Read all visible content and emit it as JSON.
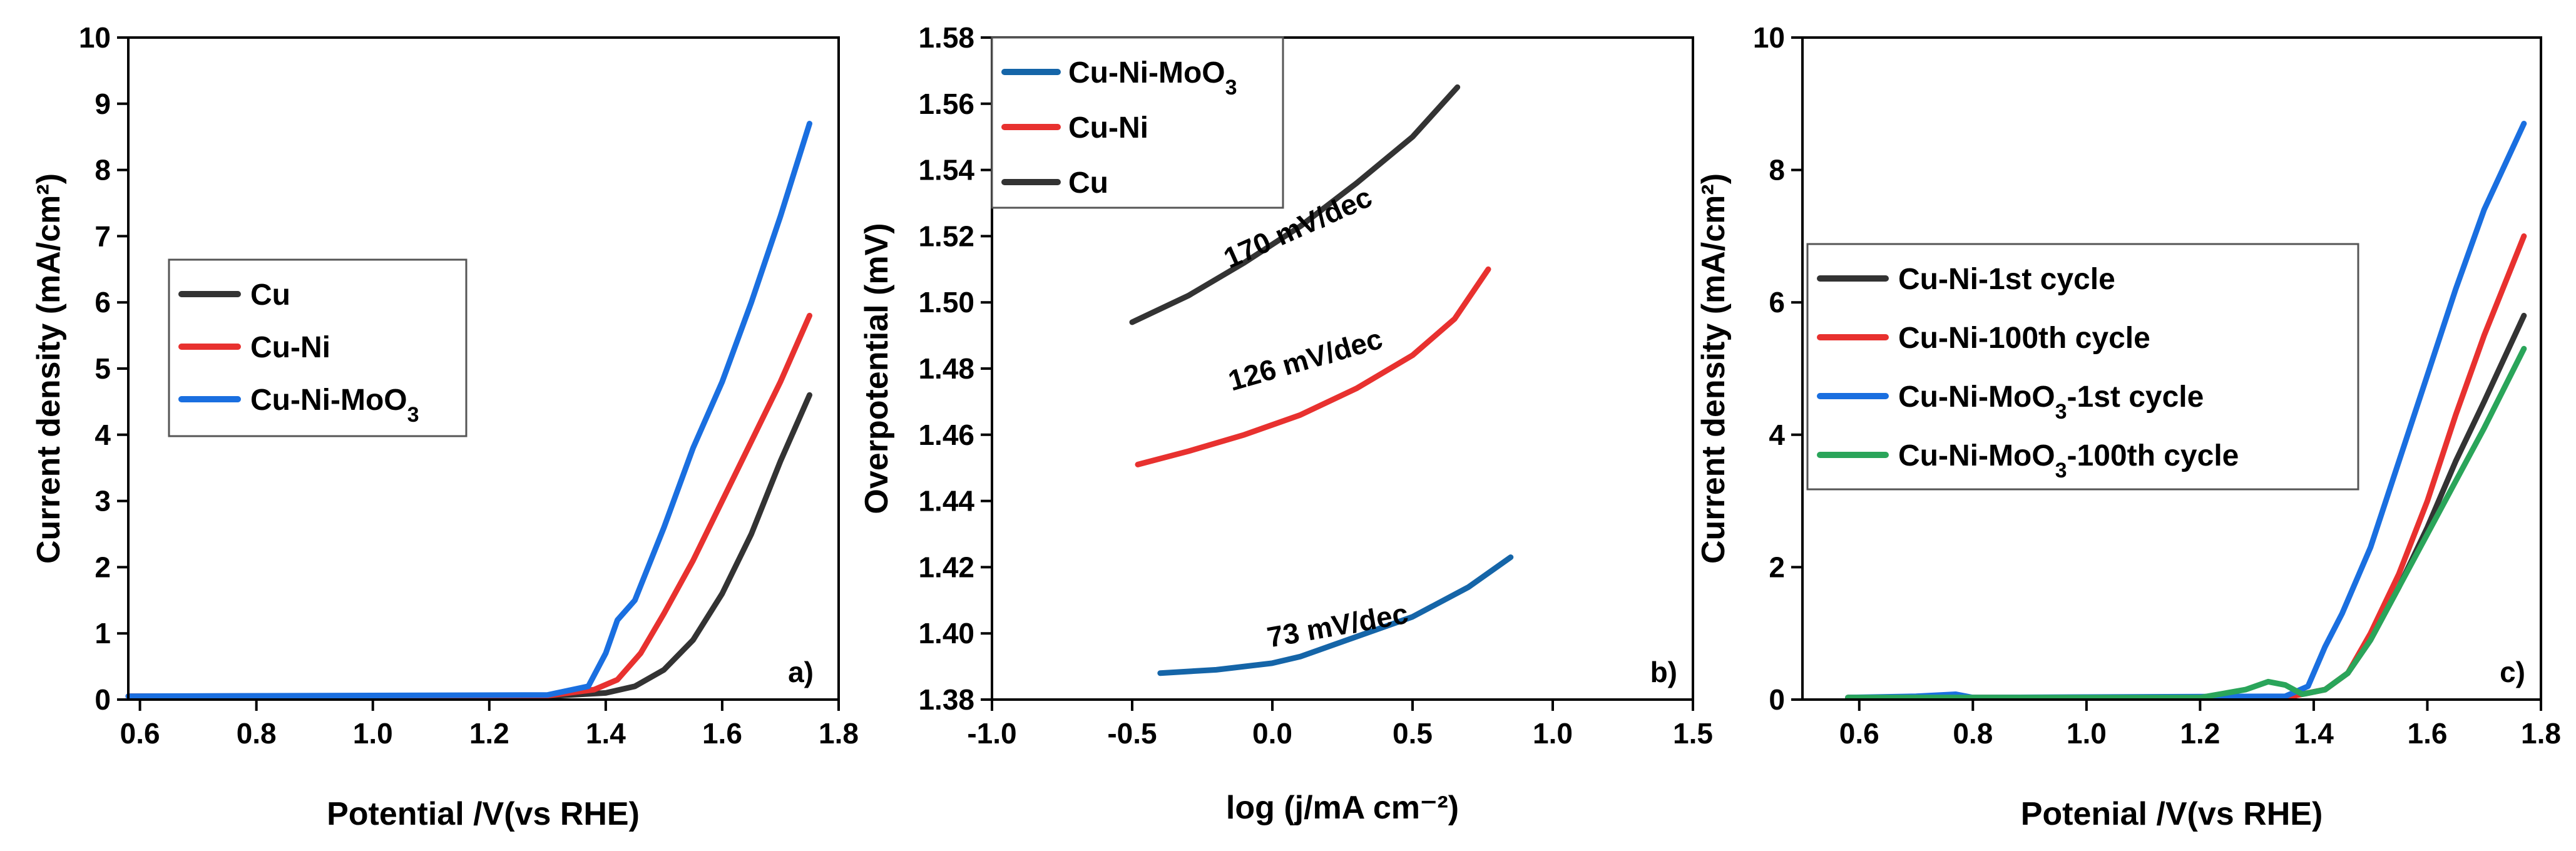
{
  "colors": {
    "black": "#333333",
    "red": "#e8312f",
    "blue": "#1a6fe0",
    "steel": "#1565a8",
    "green": "#2aa55a"
  },
  "chart_data": [
    {
      "id": "a",
      "type": "line",
      "panel_label": "a)",
      "xlabel": "Potential /V(vs RHE)",
      "ylabel": "Current density (mA/cm²)",
      "xlim": [
        0.58,
        1.8
      ],
      "ylim": [
        0,
        10
      ],
      "xticks": [
        "0.6",
        "0.8",
        "1.0",
        "1.2",
        "1.4",
        "1.6",
        "1.8"
      ],
      "yticks": [
        "0",
        "1",
        "2",
        "3",
        "4",
        "5",
        "6",
        "7",
        "8",
        "9",
        "10"
      ],
      "legend_position": "center-left",
      "series": [
        {
          "name": "Cu",
          "color_key": "black",
          "x": [
            0.58,
            1.3,
            1.4,
            1.45,
            1.5,
            1.55,
            1.6,
            1.65,
            1.7,
            1.75
          ],
          "y": [
            0.05,
            0.05,
            0.1,
            0.2,
            0.45,
            0.9,
            1.6,
            2.5,
            3.6,
            4.6
          ]
        },
        {
          "name": "Cu-Ni",
          "color_key": "red",
          "x": [
            0.58,
            1.3,
            1.38,
            1.42,
            1.46,
            1.5,
            1.55,
            1.6,
            1.65,
            1.7,
            1.75
          ],
          "y": [
            0.05,
            0.06,
            0.15,
            0.3,
            0.7,
            1.3,
            2.1,
            3.0,
            3.9,
            4.8,
            5.8
          ]
        },
        {
          "name": "Cu-Ni-MoO3",
          "color_key": "blue",
          "x": [
            0.58,
            1.3,
            1.37,
            1.4,
            1.42,
            1.45,
            1.5,
            1.55,
            1.6,
            1.65,
            1.7,
            1.75
          ],
          "y": [
            0.05,
            0.07,
            0.2,
            0.7,
            1.2,
            1.5,
            2.6,
            3.8,
            4.8,
            6.0,
            7.3,
            8.7
          ]
        }
      ]
    },
    {
      "id": "b",
      "type": "line",
      "panel_label": "b)",
      "xlabel": "log (j/mA cm⁻²)",
      "ylabel": "Overpotential (mV)",
      "xlim": [
        -1.0,
        1.5
      ],
      "ylim": [
        1.38,
        1.58
      ],
      "xticks": [
        "-1.0",
        "-0.5",
        "0.0",
        "0.5",
        "1.0",
        "1.5"
      ],
      "yticks": [
        "1.38",
        "1.40",
        "1.42",
        "1.44",
        "1.46",
        "1.48",
        "1.50",
        "1.52",
        "1.54",
        "1.56",
        "1.58"
      ],
      "legend_position": "top-left",
      "series": [
        {
          "name": "Cu-Ni-MoO3",
          "color_key": "steel",
          "slope_label": "73 mV/dec",
          "x": [
            -0.4,
            -0.2,
            0.0,
            0.1,
            0.3,
            0.5,
            0.7,
            0.85
          ],
          "y": [
            1.388,
            1.389,
            1.391,
            1.393,
            1.399,
            1.405,
            1.414,
            1.423
          ]
        },
        {
          "name": "Cu-Ni",
          "color_key": "red",
          "slope_label": "126 mV/dec",
          "x": [
            -0.48,
            -0.3,
            -0.1,
            0.1,
            0.3,
            0.5,
            0.65,
            0.77
          ],
          "y": [
            1.451,
            1.455,
            1.46,
            1.466,
            1.474,
            1.484,
            1.495,
            1.51
          ]
        },
        {
          "name": "Cu",
          "color_key": "black",
          "slope_label": "170 mV/dec",
          "x": [
            -0.5,
            -0.3,
            -0.1,
            0.1,
            0.3,
            0.5,
            0.66
          ],
          "y": [
            1.494,
            1.502,
            1.512,
            1.523,
            1.536,
            1.55,
            1.565
          ]
        }
      ]
    },
    {
      "id": "c",
      "type": "line",
      "panel_label": "c)",
      "xlabel": "Potenial /V(vs RHE)",
      "ylabel": "Current density (mA/cm²)",
      "xlim": [
        0.5,
        1.8
      ],
      "ylim": [
        0,
        10
      ],
      "xticks": [
        "0.6",
        "0.8",
        "1.0",
        "1.2",
        "1.4",
        "1.6",
        "1.8"
      ],
      "yticks": [
        "0",
        "2",
        "4",
        "6",
        "8",
        "10"
      ],
      "legend_position": "center-left",
      "series": [
        {
          "name": "Cu-Ni-1st cycle",
          "color_key": "black",
          "x": [
            0.58,
            1.35,
            1.42,
            1.46,
            1.5,
            1.55,
            1.6,
            1.65,
            1.7,
            1.77
          ],
          "y": [
            0.03,
            0.03,
            0.15,
            0.4,
            0.9,
            1.7,
            2.6,
            3.6,
            4.5,
            5.8
          ]
        },
        {
          "name": "Cu-Ni-100th cycle",
          "color_key": "red",
          "x": [
            0.58,
            1.35,
            1.42,
            1.46,
            1.5,
            1.55,
            1.6,
            1.65,
            1.7,
            1.77
          ],
          "y": [
            0.03,
            0.03,
            0.15,
            0.4,
            1.0,
            1.9,
            3.0,
            4.3,
            5.5,
            7.0
          ]
        },
        {
          "name": "Cu-Ni-MoO3-1st cycle",
          "color_key": "blue",
          "x": [
            0.58,
            0.7,
            0.77,
            0.8,
            1.35,
            1.39,
            1.42,
            1.45,
            1.5,
            1.55,
            1.6,
            1.65,
            1.7,
            1.77
          ],
          "y": [
            0.03,
            0.05,
            0.08,
            0.03,
            0.05,
            0.2,
            0.8,
            1.3,
            2.3,
            3.6,
            4.9,
            6.2,
            7.4,
            8.7
          ]
        },
        {
          "name": "Cu-Ni-MoO3-100th cycle",
          "color_key": "green",
          "x": [
            0.58,
            1.2,
            1.28,
            1.32,
            1.35,
            1.38,
            1.42,
            1.46,
            1.5,
            1.55,
            1.6,
            1.65,
            1.7,
            1.77
          ],
          "y": [
            0.03,
            0.03,
            0.15,
            0.27,
            0.22,
            0.08,
            0.15,
            0.4,
            0.9,
            1.7,
            2.5,
            3.3,
            4.1,
            5.3
          ]
        }
      ]
    }
  ]
}
